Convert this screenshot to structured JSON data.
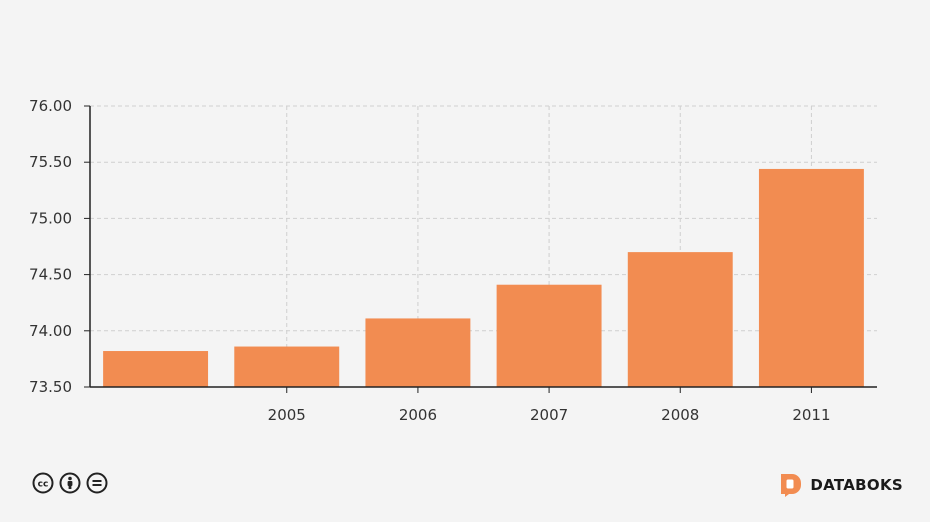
{
  "chart_data": {
    "type": "bar",
    "title": "",
    "xlabel": "",
    "ylabel": "",
    "categories": [
      "",
      "2005",
      "2006",
      "2007",
      "2008",
      "2011"
    ],
    "values": [
      73.82,
      73.86,
      74.11,
      74.41,
      74.7,
      75.44
    ],
    "ylim": [
      73.5,
      76.0
    ],
    "yticks": [
      "73.50",
      "74.00",
      "74.50",
      "75.00",
      "75.50",
      "76.00"
    ],
    "grid": true,
    "bar_color": "#f28c51"
  },
  "footer": {
    "license_icons": [
      "cc-icon",
      "by-icon",
      "nd-icon"
    ],
    "brand": "DATABOKS",
    "brand_color": "#f28c51"
  }
}
